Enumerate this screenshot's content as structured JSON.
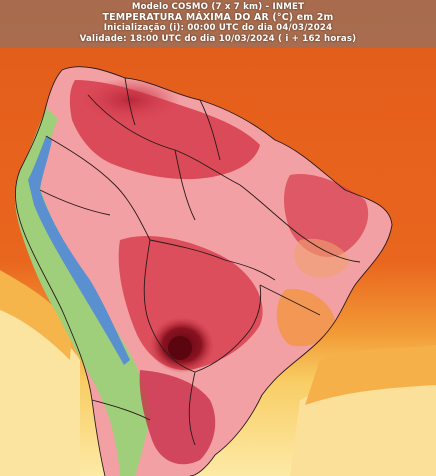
{
  "header": {
    "model_line": "Modelo COSMO (7 x 7 km) - INMET",
    "title_line": "TEMPERATURA MÁXIMA DO AR (°C) em 2m",
    "init_line": "Inicialização (i): 00:00 UTC do dia 04/03/2024",
    "validity_line": "Validade: 18:00 UTC do dia 10/03/2024 ( i + 162 horas)"
  },
  "colors": {
    "ocean_hot": "#e8651e",
    "ocean_mid": "#f28a2c",
    "ocean_cool": "#f7c256",
    "ocean_mild": "#fde9a8",
    "land_pink": "#f3a0a4",
    "land_red": "#d84050",
    "land_dark": "#a01c2a",
    "land_core": "#7a0c18",
    "highland_blue": "#5a8fd0",
    "highland_green": "#9fcf7a",
    "border_line": "#2a1a1a"
  },
  "map": {
    "region": "South America",
    "variable": "maximum 2m air temperature"
  }
}
